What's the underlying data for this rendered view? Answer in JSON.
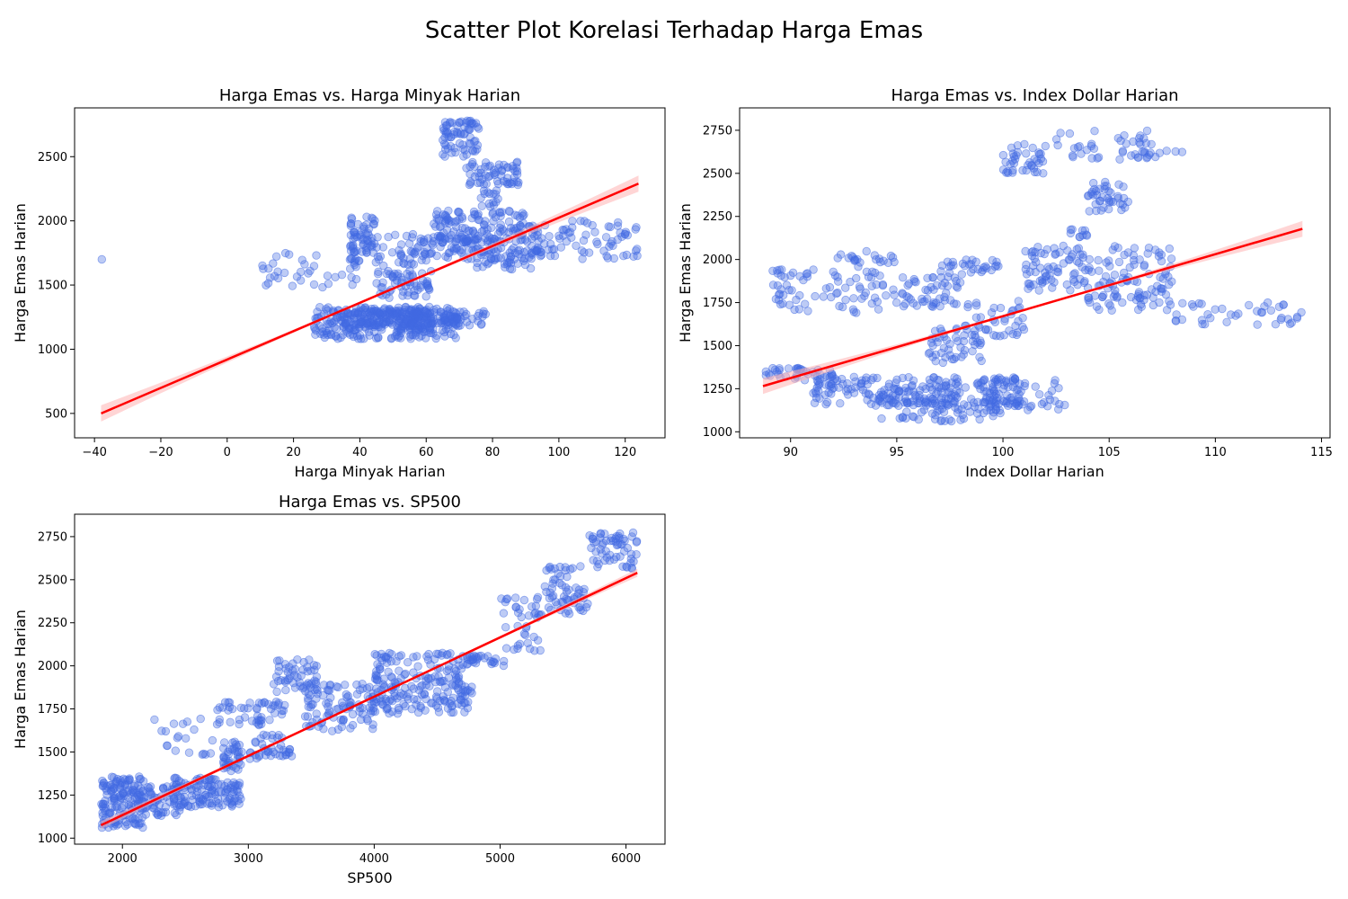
{
  "figure": {
    "title": "Scatter Plot Korelasi Terhadap Harga Emas",
    "point_color": "#4169e1",
    "fit_color": "#ff0000",
    "band_color": "#ffb3b3"
  },
  "chart_data": [
    {
      "type": "scatter",
      "title": "Harga Emas vs. Harga Minyak Harian",
      "xlabel": "Harga Minyak Harian",
      "ylabel": "Harga Emas Harian",
      "xlim": [
        -46,
        132
      ],
      "ylim": [
        310,
        2880
      ],
      "xticks": [
        -40,
        -20,
        0,
        20,
        40,
        60,
        80,
        100,
        120
      ],
      "xtick_labels": [
        "−40",
        "−20",
        "0",
        "20",
        "40",
        "60",
        "80",
        "100",
        "120"
      ],
      "yticks": [
        500,
        1000,
        1500,
        2000,
        2500
      ],
      "ytick_labels": [
        "500",
        "1000",
        "1500",
        "2000",
        "2500"
      ],
      "regression": {
        "x": [
          -38,
          124
        ],
        "y": [
          500,
          2290
        ],
        "band": 55
      },
      "clusters": [
        {
          "x": [
            -37.8,
            -37.8
          ],
          "y": [
            1700,
            1700
          ],
          "n": 1
        },
        {
          "x": [
            26,
            70
          ],
          "y": [
            1080,
            1330
          ],
          "n": 260
        },
        {
          "x": [
            30,
            60
          ],
          "y": [
            1150,
            1300
          ],
          "n": 90
        },
        {
          "x": [
            40,
            70
          ],
          "y": [
            1200,
            1320
          ],
          "n": 80
        },
        {
          "x": [
            55,
            78
          ],
          "y": [
            1180,
            1300
          ],
          "n": 60
        },
        {
          "x": [
            45,
            62
          ],
          "y": [
            1400,
            1620
          ],
          "n": 60
        },
        {
          "x": [
            10,
            40
          ],
          "y": [
            1480,
            1760
          ],
          "n": 40
        },
        {
          "x": [
            37,
            45
          ],
          "y": [
            1750,
            2040
          ],
          "n": 50
        },
        {
          "x": [
            35,
            60
          ],
          "y": [
            1650,
            1900
          ],
          "n": 50
        },
        {
          "x": [
            55,
            80
          ],
          "y": [
            1700,
            1900
          ],
          "n": 70
        },
        {
          "x": [
            62,
            90
          ],
          "y": [
            1830,
            2080
          ],
          "n": 130
        },
        {
          "x": [
            75,
            95
          ],
          "y": [
            1620,
            1800
          ],
          "n": 60
        },
        {
          "x": [
            88,
            124
          ],
          "y": [
            1700,
            2000
          ],
          "n": 90
        },
        {
          "x": [
            65,
            76
          ],
          "y": [
            2500,
            2780
          ],
          "n": 70
        },
        {
          "x": [
            72,
            88
          ],
          "y": [
            2280,
            2460
          ],
          "n": 60
        },
        {
          "x": [
            76,
            82
          ],
          "y": [
            2100,
            2240
          ],
          "n": 15
        }
      ]
    },
    {
      "type": "scatter",
      "title": "Harga Emas vs. Index Dollar Harian",
      "xlabel": "Index Dollar Harian",
      "ylabel": "Harga Emas Harian",
      "xlim": [
        87.6,
        115.4
      ],
      "ylim": [
        965,
        2880
      ],
      "xticks": [
        90,
        95,
        100,
        105,
        110,
        115
      ],
      "xtick_labels": [
        "90",
        "95",
        "100",
        "105",
        "110",
        "115"
      ],
      "yticks": [
        1000,
        1250,
        1500,
        1750,
        2000,
        2250,
        2500,
        2750
      ],
      "ytick_labels": [
        "1000",
        "1250",
        "1500",
        "1750",
        "2000",
        "2250",
        "2500",
        "2750"
      ],
      "regression": {
        "x": [
          88.7,
          114.1
        ],
        "y": [
          1265,
          2178
        ],
        "band": 40
      },
      "clusters": [
        {
          "x": [
            88.6,
            92
          ],
          "y": [
            1300,
            1370
          ],
          "n": 40
        },
        {
          "x": [
            91,
            101
          ],
          "y": [
            1150,
            1320
          ],
          "n": 220
        },
        {
          "x": [
            94,
            100
          ],
          "y": [
            1060,
            1200
          ],
          "n": 80
        },
        {
          "x": [
            99,
            103
          ],
          "y": [
            1120,
            1300
          ],
          "n": 40
        },
        {
          "x": [
            89,
            92
          ],
          "y": [
            1700,
            1950
          ],
          "n": 40
        },
        {
          "x": [
            92,
            95
          ],
          "y": [
            1680,
            2050
          ],
          "n": 60
        },
        {
          "x": [
            95,
            98
          ],
          "y": [
            1720,
            1900
          ],
          "n": 50
        },
        {
          "x": [
            96.5,
            99
          ],
          "y": [
            1400,
            1600
          ],
          "n": 50
        },
        {
          "x": [
            98,
            101
          ],
          "y": [
            1550,
            1760
          ],
          "n": 40
        },
        {
          "x": [
            97,
            100
          ],
          "y": [
            1900,
            2000
          ],
          "n": 30
        },
        {
          "x": [
            101,
            108
          ],
          "y": [
            1820,
            2080
          ],
          "n": 140
        },
        {
          "x": [
            104,
            108
          ],
          "y": [
            1700,
            1820
          ],
          "n": 40
        },
        {
          "x": [
            108,
            114.1
          ],
          "y": [
            1620,
            1750
          ],
          "n": 40
        },
        {
          "x": [
            100,
            102
          ],
          "y": [
            2480,
            2670
          ],
          "n": 40
        },
        {
          "x": [
            102.5,
            107
          ],
          "y": [
            2580,
            2750
          ],
          "n": 40
        },
        {
          "x": [
            104,
            106
          ],
          "y": [
            2280,
            2460
          ],
          "n": 40
        },
        {
          "x": [
            103,
            104
          ],
          "y": [
            2130,
            2180
          ],
          "n": 10
        },
        {
          "x": [
            106.5,
            108.5
          ],
          "y": [
            2590,
            2650
          ],
          "n": 10
        }
      ]
    },
    {
      "type": "scatter",
      "title": "Harga Emas vs. SP500",
      "xlabel": "SP500",
      "ylabel": "Harga Emas Harian",
      "xlim": [
        1620,
        6310
      ],
      "ylim": [
        965,
        2880
      ],
      "xticks": [
        2000,
        3000,
        4000,
        5000,
        6000
      ],
      "xtick_labels": [
        "2000",
        "3000",
        "4000",
        "5000",
        "6000"
      ],
      "yticks": [
        1000,
        1250,
        1500,
        1750,
        2000,
        2250,
        2500,
        2750
      ],
      "ytick_labels": [
        "1000",
        "1250",
        "1500",
        "1750",
        "2000",
        "2250",
        "2500",
        "2750"
      ],
      "regression": {
        "x": [
          1830,
          6090
        ],
        "y": [
          1075,
          2540
        ],
        "band": 20
      },
      "clusters": [
        {
          "x": [
            1830,
            2180
          ],
          "y": [
            1060,
            1360
          ],
          "n": 160
        },
        {
          "x": [
            2180,
            2500
          ],
          "y": [
            1130,
            1300
          ],
          "n": 60
        },
        {
          "x": [
            2400,
            2950
          ],
          "y": [
            1180,
            1350
          ],
          "n": 120
        },
        {
          "x": [
            2800,
            2950
          ],
          "y": [
            1380,
            1560
          ],
          "n": 40
        },
        {
          "x": [
            2250,
            2750
          ],
          "y": [
            1480,
            1700
          ],
          "n": 20
        },
        {
          "x": [
            2750,
            3300
          ],
          "y": [
            1650,
            1800
          ],
          "n": 50
        },
        {
          "x": [
            3000,
            3350
          ],
          "y": [
            1460,
            1600
          ],
          "n": 40
        },
        {
          "x": [
            3200,
            3550
          ],
          "y": [
            1850,
            2040
          ],
          "n": 50
        },
        {
          "x": [
            3450,
            4000
          ],
          "y": [
            1620,
            1900
          ],
          "n": 80
        },
        {
          "x": [
            3800,
            4800
          ],
          "y": [
            1720,
            1880
          ],
          "n": 120
        },
        {
          "x": [
            4000,
            4700
          ],
          "y": [
            1880,
            2080
          ],
          "n": 100
        },
        {
          "x": [
            4700,
            5050
          ],
          "y": [
            2000,
            2060
          ],
          "n": 30
        },
        {
          "x": [
            5000,
            5350
          ],
          "y": [
            2080,
            2400
          ],
          "n": 40
        },
        {
          "x": [
            5350,
            5700
          ],
          "y": [
            2300,
            2580
          ],
          "n": 60
        },
        {
          "x": [
            5700,
            6090
          ],
          "y": [
            2560,
            2780
          ],
          "n": 60
        }
      ]
    }
  ]
}
